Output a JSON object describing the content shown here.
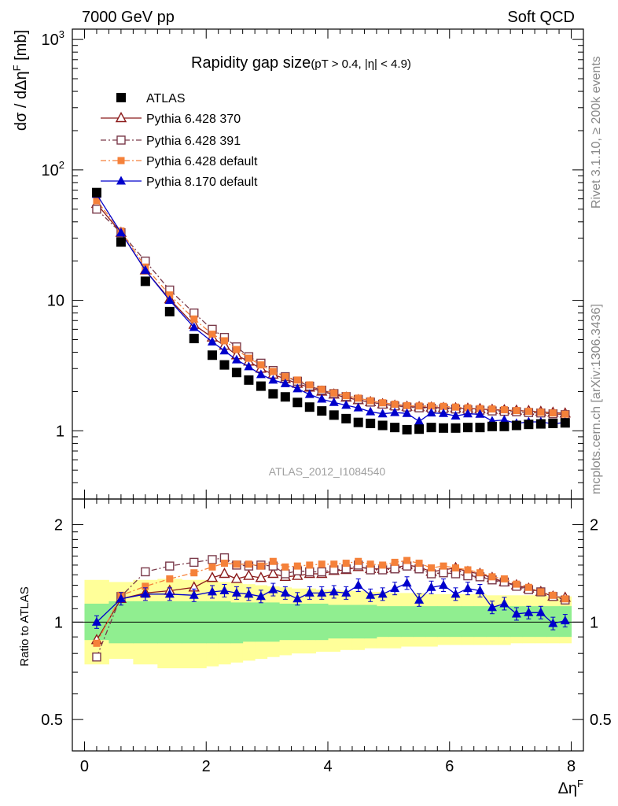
{
  "header": {
    "left": "7000 GeV pp",
    "right": "Soft QCD"
  },
  "side_labels": {
    "rivet": "Rivet 3.1.10, ≥ 200k events",
    "mcplots": "mcplots.cern.ch [arXiv:1306.3436]"
  },
  "chart_data": [
    {
      "type": "scatter",
      "panel": "main",
      "title": "Rapidity gap size",
      "title_cuts": "(pT > 0.4, |η| < 4.9)",
      "analysis_id": "ATLAS_2012_I1084540",
      "xlabel": "ΔηF",
      "ylabel": "dσ / dΔηF [mb]",
      "y_scale": "log",
      "xlim": [
        -0.2,
        8.2
      ],
      "ylim": [
        0.3,
        1200
      ],
      "y_ticks": [
        "1",
        "10",
        "10²",
        "10³"
      ],
      "x": [
        0.2,
        0.6,
        1.0,
        1.4,
        1.8,
        2.1,
        2.3,
        2.5,
        2.7,
        2.9,
        3.1,
        3.3,
        3.5,
        3.7,
        3.9,
        4.1,
        4.3,
        4.5,
        4.7,
        4.9,
        5.1,
        5.3,
        5.5,
        5.7,
        5.9,
        6.1,
        6.3,
        6.5,
        6.7,
        6.9,
        7.1,
        7.3,
        7.5,
        7.7,
        7.9
      ],
      "legend_position": "top-left",
      "series": [
        {
          "name": "ATLAS",
          "color": "#000000",
          "marker": "square-filled",
          "values": [
            67,
            28,
            14,
            8.2,
            5.1,
            3.8,
            3.2,
            2.8,
            2.45,
            2.2,
            1.92,
            1.82,
            1.65,
            1.52,
            1.42,
            1.32,
            1.24,
            1.16,
            1.14,
            1.1,
            1.06,
            1.02,
            1.03,
            1.06,
            1.05,
            1.05,
            1.06,
            1.06,
            1.08,
            1.08,
            1.1,
            1.12,
            1.13,
            1.14,
            1.15
          ]
        },
        {
          "name": "Pythia 6.428 370",
          "color": "#8b1a1a",
          "marker": "triangle-open",
          "line": "solid",
          "values": [
            55,
            33,
            17,
            10.2,
            6.5,
            5.2,
            4.5,
            3.8,
            3.4,
            3.0,
            2.7,
            2.5,
            2.3,
            2.15,
            2.0,
            1.9,
            1.8,
            1.72,
            1.66,
            1.6,
            1.56,
            1.53,
            1.52,
            1.51,
            1.5,
            1.49,
            1.48,
            1.47,
            1.45,
            1.44,
            1.43,
            1.42,
            1.4,
            1.38,
            1.36
          ]
        },
        {
          "name": "Pythia 6.428 391",
          "color": "#7a3a4a",
          "marker": "square-open",
          "line": "dash-dot",
          "values": [
            50,
            33,
            20,
            12,
            8.0,
            6.0,
            5.2,
            4.4,
            3.7,
            3.3,
            2.9,
            2.6,
            2.4,
            2.2,
            2.05,
            1.93,
            1.83,
            1.74,
            1.66,
            1.6,
            1.55,
            1.52,
            1.5,
            1.49,
            1.48,
            1.47,
            1.45,
            1.44,
            1.42,
            1.41,
            1.4,
            1.38,
            1.37,
            1.35,
            1.33
          ]
        },
        {
          "name": "Pythia 6.428 default",
          "color": "#f5813a",
          "marker": "square-filled-small",
          "line": "dash-dot",
          "values": [
            58,
            34,
            18,
            11,
            7.2,
            5.5,
            4.9,
            4.2,
            3.6,
            3.2,
            2.85,
            2.6,
            2.45,
            2.25,
            2.08,
            1.95,
            1.86,
            1.78,
            1.7,
            1.64,
            1.6,
            1.56,
            1.55,
            1.55,
            1.54,
            1.52,
            1.5,
            1.48,
            1.47,
            1.45,
            1.43,
            1.41,
            1.39,
            1.37,
            1.34
          ]
        },
        {
          "name": "Pythia 8.170 default",
          "color": "#0000cc",
          "marker": "triangle-filled",
          "line": "solid",
          "values": [
            65,
            33,
            17,
            10.0,
            6.2,
            4.8,
            4.1,
            3.5,
            3.1,
            2.7,
            2.45,
            2.3,
            2.1,
            1.9,
            1.75,
            1.65,
            1.57,
            1.5,
            1.4,
            1.35,
            1.38,
            1.36,
            1.18,
            1.37,
            1.36,
            1.3,
            1.35,
            1.34,
            1.19,
            1.21,
            1.14,
            1.17,
            1.17,
            1.13,
            1.16
          ]
        }
      ]
    },
    {
      "type": "scatter",
      "panel": "ratio",
      "ylabel": "Ratio to ATLAS",
      "xlabel": "ΔηF",
      "y_scale": "log",
      "xlim": [
        -0.2,
        8.2
      ],
      "ylim": [
        0.4,
        2.4
      ],
      "x_ticks": [
        "0",
        "2",
        "4",
        "6",
        "8"
      ],
      "y_ticks": [
        "0.5",
        "1",
        "2"
      ],
      "reference_line": 1,
      "x": [
        0.2,
        0.6,
        1.0,
        1.4,
        1.8,
        2.1,
        2.3,
        2.5,
        2.7,
        2.9,
        3.1,
        3.3,
        3.5,
        3.7,
        3.9,
        4.1,
        4.3,
        4.5,
        4.7,
        4.9,
        5.1,
        5.3,
        5.5,
        5.7,
        5.9,
        6.1,
        6.3,
        6.5,
        6.7,
        6.9,
        7.1,
        7.3,
        7.5,
        7.7,
        7.9
      ],
      "band_edges": [
        0.0,
        0.4,
        0.8,
        1.2,
        1.6,
        2.0,
        2.2,
        2.4,
        2.6,
        2.8,
        3.0,
        3.2,
        3.4,
        3.6,
        3.8,
        4.0,
        4.2,
        4.4,
        4.6,
        4.8,
        5.0,
        5.2,
        5.4,
        5.6,
        5.8,
        6.0,
        6.2,
        6.4,
        6.6,
        6.8,
        7.0,
        7.2,
        7.4,
        7.6,
        7.8,
        8.0
      ],
      "bands": {
        "green": {
          "color": "#90ee90",
          "lo": [
            0.88,
            0.86,
            0.86,
            0.86,
            0.86,
            0.86,
            0.86,
            0.86,
            0.87,
            0.87,
            0.87,
            0.88,
            0.88,
            0.88,
            0.88,
            0.89,
            0.89,
            0.89,
            0.89,
            0.9,
            0.9,
            0.9,
            0.9,
            0.9,
            0.9,
            0.9,
            0.9,
            0.9,
            0.9,
            0.9,
            0.9,
            0.9,
            0.9,
            0.9,
            0.9
          ],
          "hi": [
            1.14,
            1.16,
            1.16,
            1.16,
            1.16,
            1.16,
            1.16,
            1.15,
            1.15,
            1.15,
            1.15,
            1.14,
            1.14,
            1.14,
            1.14,
            1.13,
            1.13,
            1.13,
            1.13,
            1.12,
            1.12,
            1.12,
            1.12,
            1.12,
            1.12,
            1.12,
            1.12,
            1.12,
            1.12,
            1.12,
            1.12,
            1.12,
            1.12,
            1.12,
            1.12
          ]
        },
        "yellow": {
          "color": "#ffff99",
          "lo": [
            0.74,
            0.77,
            0.74,
            0.72,
            0.72,
            0.73,
            0.74,
            0.75,
            0.76,
            0.77,
            0.78,
            0.79,
            0.8,
            0.8,
            0.81,
            0.81,
            0.82,
            0.82,
            0.83,
            0.83,
            0.83,
            0.84,
            0.84,
            0.84,
            0.85,
            0.85,
            0.85,
            0.85,
            0.85,
            0.85,
            0.86,
            0.86,
            0.86,
            0.86,
            0.86
          ],
          "hi": [
            1.35,
            1.33,
            1.35,
            1.36,
            1.35,
            1.34,
            1.33,
            1.32,
            1.31,
            1.3,
            1.29,
            1.28,
            1.27,
            1.27,
            1.26,
            1.26,
            1.25,
            1.25,
            1.24,
            1.24,
            1.23,
            1.23,
            1.23,
            1.22,
            1.22,
            1.22,
            1.22,
            1.22,
            1.21,
            1.21,
            1.21,
            1.21,
            1.21,
            1.2,
            1.2
          ]
        }
      },
      "series": [
        {
          "name": "Pythia 6.428 370",
          "color": "#8b1a1a",
          "marker": "triangle-open",
          "line": "solid",
          "values": [
            0.88,
            1.18,
            1.23,
            1.25,
            1.28,
            1.37,
            1.41,
            1.36,
            1.39,
            1.37,
            1.41,
            1.38,
            1.39,
            1.41,
            1.41,
            1.44,
            1.45,
            1.48,
            1.46,
            1.46,
            1.47,
            1.5,
            1.48,
            1.43,
            1.45,
            1.47,
            1.43,
            1.41,
            1.37,
            1.33,
            1.3,
            1.27,
            1.24,
            1.2,
            1.19
          ]
        },
        {
          "name": "Pythia 6.428 391",
          "color": "#7a3a4a",
          "marker": "square-open",
          "line": "dash-dot",
          "values": [
            0.78,
            1.2,
            1.43,
            1.49,
            1.53,
            1.56,
            1.58,
            1.5,
            1.49,
            1.5,
            1.49,
            1.41,
            1.44,
            1.43,
            1.43,
            1.45,
            1.46,
            1.5,
            1.45,
            1.45,
            1.46,
            1.49,
            1.46,
            1.41,
            1.42,
            1.41,
            1.39,
            1.38,
            1.35,
            1.33,
            1.29,
            1.26,
            1.24,
            1.2,
            1.17
          ]
        },
        {
          "name": "Pythia 6.428 default",
          "color": "#f5813a",
          "marker": "square-filled-small",
          "line": "dash-dot",
          "values": [
            0.86,
            1.21,
            1.29,
            1.36,
            1.42,
            1.48,
            1.52,
            1.51,
            1.51,
            1.49,
            1.54,
            1.48,
            1.49,
            1.5,
            1.51,
            1.51,
            1.52,
            1.54,
            1.51,
            1.5,
            1.53,
            1.55,
            1.52,
            1.47,
            1.49,
            1.47,
            1.45,
            1.42,
            1.38,
            1.36,
            1.31,
            1.28,
            1.24,
            1.21,
            1.18
          ]
        },
        {
          "name": "Pythia 8.170 default",
          "color": "#0000cc",
          "marker": "triangle-filled",
          "line": "solid",
          "values": [
            1.0,
            1.18,
            1.22,
            1.22,
            1.21,
            1.24,
            1.25,
            1.23,
            1.22,
            1.2,
            1.26,
            1.23,
            1.18,
            1.23,
            1.23,
            1.24,
            1.23,
            1.3,
            1.21,
            1.22,
            1.27,
            1.32,
            1.17,
            1.28,
            1.3,
            1.22,
            1.27,
            1.25,
            1.11,
            1.14,
            1.06,
            1.07,
            1.07,
            0.99,
            1.01
          ]
        }
      ]
    }
  ]
}
